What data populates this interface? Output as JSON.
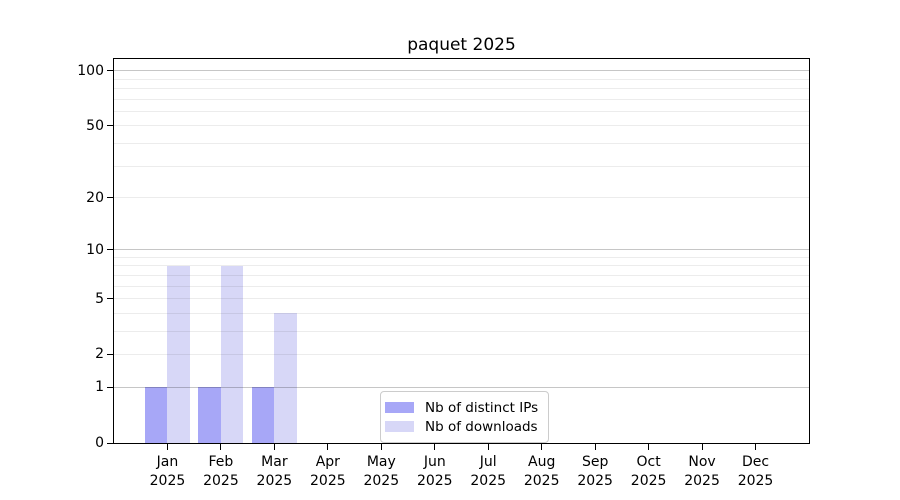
{
  "chart_data": {
    "type": "bar",
    "title": "paquet 2025",
    "categories": [
      "Jan",
      "Feb",
      "Mar",
      "Apr",
      "May",
      "Jun",
      "Jul",
      "Aug",
      "Sep",
      "Oct",
      "Nov",
      "Dec"
    ],
    "category_sublabel": "2025",
    "series": [
      {
        "name": "Nb of distinct IPs",
        "color": "#a7a7f7",
        "values": [
          1,
          1,
          1,
          0,
          0,
          0,
          0,
          0,
          0,
          0,
          0,
          0
        ]
      },
      {
        "name": "Nb of downloads",
        "color": "#d7d7f7",
        "values": [
          8,
          8,
          4,
          0,
          0,
          0,
          0,
          0,
          0,
          0,
          0,
          0
        ]
      }
    ],
    "yscale": "log1p",
    "ylim": [
      0,
      116
    ],
    "yticks": [
      0,
      1,
      2,
      5,
      10,
      20,
      50,
      100
    ],
    "minor_yticks": [
      3,
      4,
      6,
      7,
      8,
      9,
      30,
      40,
      60,
      70,
      80,
      90
    ],
    "decade_yticks": [
      1,
      10,
      100
    ],
    "grid": true,
    "legend_position": "inside-bottom-center",
    "colors": {
      "major_grid": "#c6c6c6",
      "minor_grid": "#ececec",
      "axis": "#000000",
      "text": "#000000",
      "background": "#ffffff"
    }
  }
}
